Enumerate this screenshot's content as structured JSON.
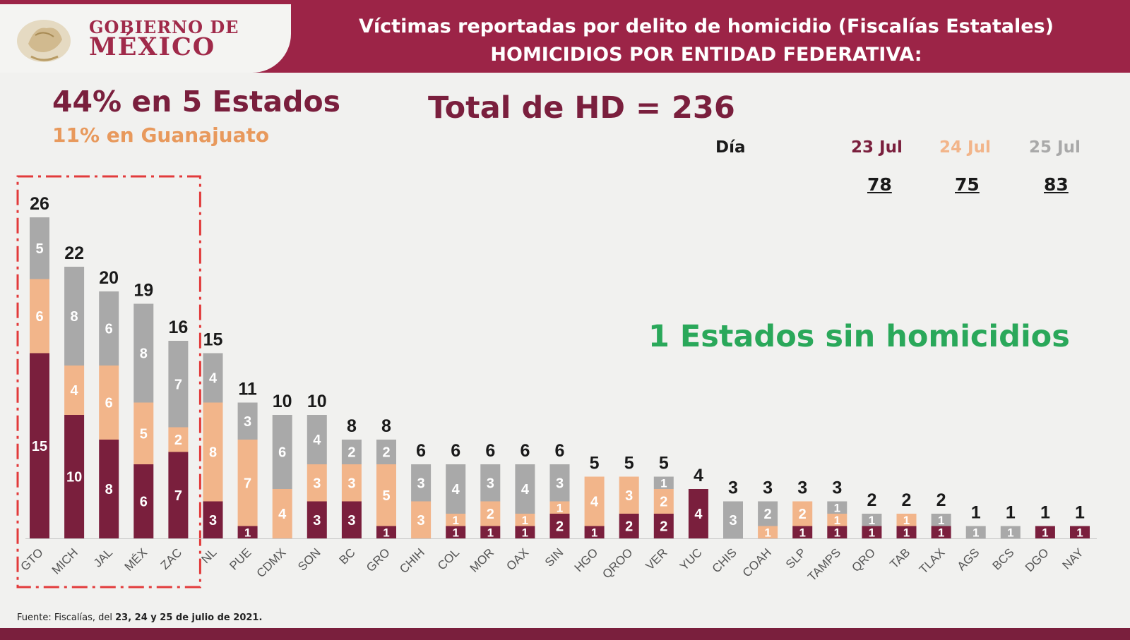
{
  "header": {
    "logo_line1": "GOBIERNO DE",
    "logo_line2": "MÉXICO",
    "title_line1": "Víctimas reportadas por delito de homicidio (Fiscalías Estatales)",
    "title_line2": "HOMICIDIOS POR ENTIDAD FEDERATIVA:"
  },
  "summary": {
    "headline": "44% en 5 Estados",
    "subheadline": "11% en Guanajuato",
    "total": "Total de HD = 236",
    "no_homicides": "1 Estados sin homicidios"
  },
  "days": {
    "label": "Día",
    "items": [
      {
        "date": "23 Jul",
        "value": "78",
        "color": "#7a1f3d"
      },
      {
        "date": "24 Jul",
        "value": "75",
        "color": "#f2b58a"
      },
      {
        "date": "25 Jul",
        "value": "83",
        "color": "#a9a9a9"
      }
    ]
  },
  "source": {
    "prefix": "Fuente: Fiscalías, del ",
    "dates": "23, 24 y 25 de julio de 2021."
  },
  "chart_data": {
    "type": "bar",
    "stacked": true,
    "categories": [
      "GTO",
      "MICH",
      "JAL",
      "MÉX",
      "ZAC",
      "NL",
      "PUE",
      "CDMX",
      "SON",
      "BC",
      "GRO",
      "CHIH",
      "COL",
      "MOR",
      "OAX",
      "SIN",
      "HGO",
      "QROO",
      "VER",
      "YUC",
      "CHIS",
      "COAH",
      "SLP",
      "TAMPS",
      "QRO",
      "TAB",
      "TLAX",
      "AGS",
      "BCS",
      "DGO",
      "NAY"
    ],
    "series": [
      {
        "name": "23 Jul",
        "color": "#7a1f3d",
        "values": [
          15,
          10,
          8,
          6,
          7,
          3,
          1,
          0,
          3,
          3,
          1,
          0,
          1,
          1,
          1,
          2,
          1,
          2,
          2,
          4,
          0,
          0,
          1,
          1,
          1,
          1,
          1,
          0,
          0,
          1,
          1
        ]
      },
      {
        "name": "24 Jul",
        "color": "#f2b58a",
        "values": [
          6,
          4,
          6,
          5,
          2,
          8,
          7,
          4,
          3,
          3,
          5,
          3,
          1,
          2,
          1,
          1,
          4,
          3,
          2,
          0,
          0,
          1,
          2,
          1,
          0,
          1,
          0,
          0,
          0,
          0,
          0
        ]
      },
      {
        "name": "25 Jul",
        "color": "#a9a9a9",
        "values": [
          5,
          8,
          6,
          8,
          7,
          4,
          3,
          6,
          4,
          2,
          2,
          3,
          4,
          3,
          4,
          3,
          0,
          0,
          1,
          0,
          3,
          2,
          0,
          1,
          1,
          0,
          1,
          1,
          1,
          0,
          0
        ]
      }
    ],
    "totals": [
      26,
      22,
      20,
      19,
      16,
      15,
      11,
      10,
      10,
      8,
      8,
      6,
      6,
      6,
      6,
      6,
      5,
      5,
      5,
      4,
      3,
      3,
      3,
      3,
      2,
      2,
      2,
      1,
      1,
      1,
      1
    ],
    "ylim": [
      0,
      28
    ],
    "highlight": {
      "categories": [
        "GTO",
        "MICH",
        "JAL",
        "MÉX",
        "ZAC"
      ],
      "color": "#e23b3b"
    }
  }
}
